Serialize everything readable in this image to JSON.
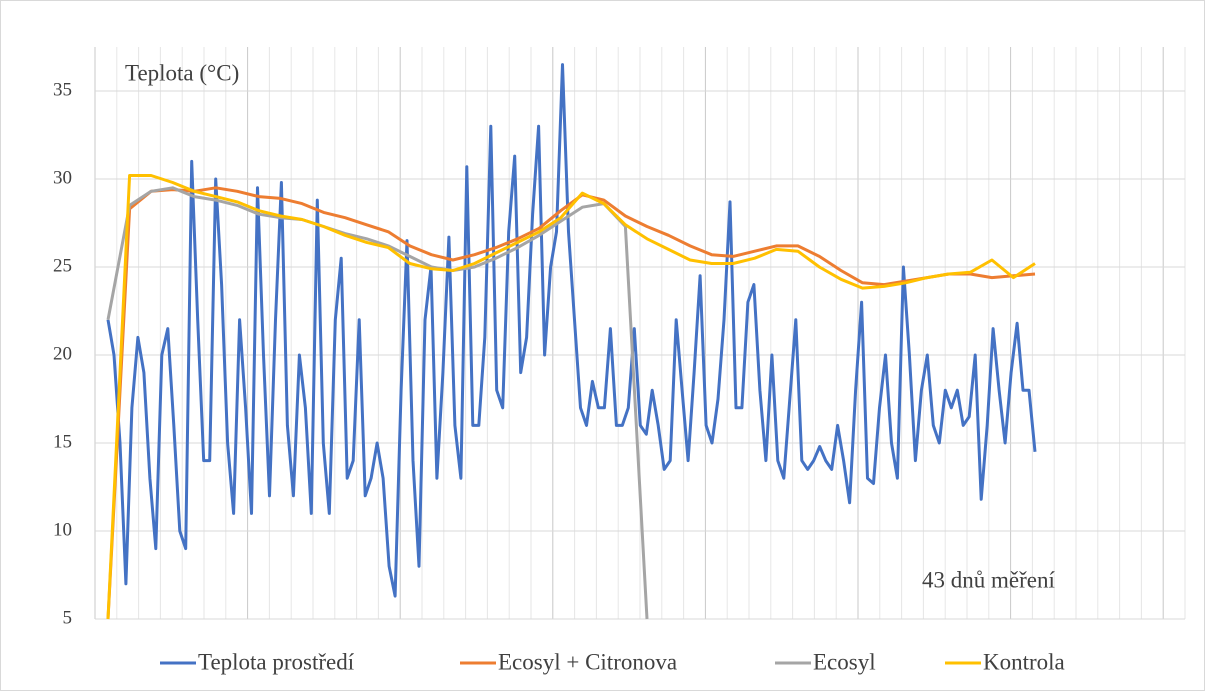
{
  "chart_data": {
    "type": "line",
    "title": "Teplota (°C)",
    "annotation": "43 dnů měření",
    "ylim": [
      5,
      37.5
    ],
    "yticks": [
      5,
      10,
      15,
      20,
      25,
      30,
      35
    ],
    "grid": true,
    "legend": "bottom",
    "series": [
      {
        "name": "Teplota prostředí",
        "color": "#4472c4",
        "values": [
          22,
          20,
          15,
          7,
          17,
          21,
          19,
          13,
          9,
          20,
          21.5,
          16,
          10,
          9,
          31,
          22,
          14,
          14,
          30,
          24,
          15,
          11,
          22,
          17,
          11,
          29.5,
          20,
          12,
          22,
          29.8,
          16,
          12,
          20,
          17,
          11,
          28.8,
          15,
          11,
          22,
          25.5,
          13,
          14,
          22,
          12,
          13,
          15,
          13,
          8,
          6.3,
          18,
          26.5,
          14,
          8,
          22,
          25,
          13,
          19,
          26.7,
          16,
          13,
          30.7,
          16,
          16,
          21,
          33,
          18,
          17,
          27,
          31.3,
          19,
          21,
          28,
          33,
          20,
          25,
          27,
          36.5,
          27,
          22,
          17,
          16,
          18.5,
          17,
          17,
          21.5,
          16,
          16,
          17,
          21.5,
          16,
          15.5,
          18,
          16,
          13.5,
          14,
          22,
          18,
          14,
          19,
          24.5,
          16,
          15,
          17.5,
          22,
          28.7,
          17,
          17,
          23,
          24,
          18,
          14,
          20,
          14,
          13,
          17.5,
          22,
          14,
          13.5,
          14,
          14.8,
          14,
          13.5,
          16,
          14,
          11.6,
          18,
          23,
          13,
          12.7,
          17,
          20,
          15,
          13,
          25,
          20,
          14,
          18,
          20,
          16,
          15,
          18,
          17,
          18,
          16,
          16.5,
          20,
          11.8,
          16,
          21.5,
          18,
          15,
          19,
          21.8,
          18,
          18,
          14.5
        ]
      },
      {
        "name": "Ecosyl + Citronova",
        "color": "#ed7d31",
        "values": [
          5,
          28.3,
          29.3,
          29.4,
          29.3,
          29.5,
          29.3,
          29.0,
          28.9,
          28.6,
          28.1,
          27.8,
          27.4,
          27.0,
          26.2,
          25.7,
          25.4,
          25.7,
          26.1,
          26.6,
          27.2,
          28.2,
          29.1,
          28.8,
          27.9,
          27.3,
          26.8,
          26.2,
          25.7,
          25.6,
          25.9,
          26.2,
          26.2,
          25.6,
          24.8,
          24.1,
          24.0,
          24.2,
          24.4,
          24.6,
          24.6,
          24.4,
          24.5,
          24.6
        ]
      },
      {
        "name": "Ecosyl",
        "color": "#a5a5a5",
        "values": [
          22,
          28.5,
          29.3,
          29.5,
          29.0,
          28.8,
          28.5,
          28.0,
          27.8,
          27.7,
          27.3,
          26.9,
          26.6,
          26.2,
          25.6,
          25.0,
          24.8,
          25.0,
          25.5,
          26.1,
          26.8,
          27.6,
          28.4,
          28.6,
          27.3,
          5,
          null,
          null,
          null,
          null,
          null,
          null,
          null,
          null,
          null,
          null,
          null,
          null,
          null,
          null,
          null,
          null,
          null,
          null
        ]
      },
      {
        "name": "Kontrola",
        "color": "#ffc000",
        "values": [
          5,
          30.2,
          30.2,
          29.8,
          29.3,
          29.0,
          28.7,
          28.2,
          27.9,
          27.7,
          27.3,
          26.8,
          26.4,
          26.1,
          25.2,
          24.9,
          24.8,
          25.2,
          25.8,
          26.4,
          27.0,
          27.8,
          29.2,
          28.6,
          27.4,
          26.6,
          26.0,
          25.4,
          25.2,
          25.2,
          25.5,
          26.0,
          25.9,
          25.0,
          24.3,
          23.8,
          23.9,
          24.1,
          24.4,
          24.6,
          24.7,
          25.4,
          24.4,
          25.2
        ]
      }
    ]
  }
}
